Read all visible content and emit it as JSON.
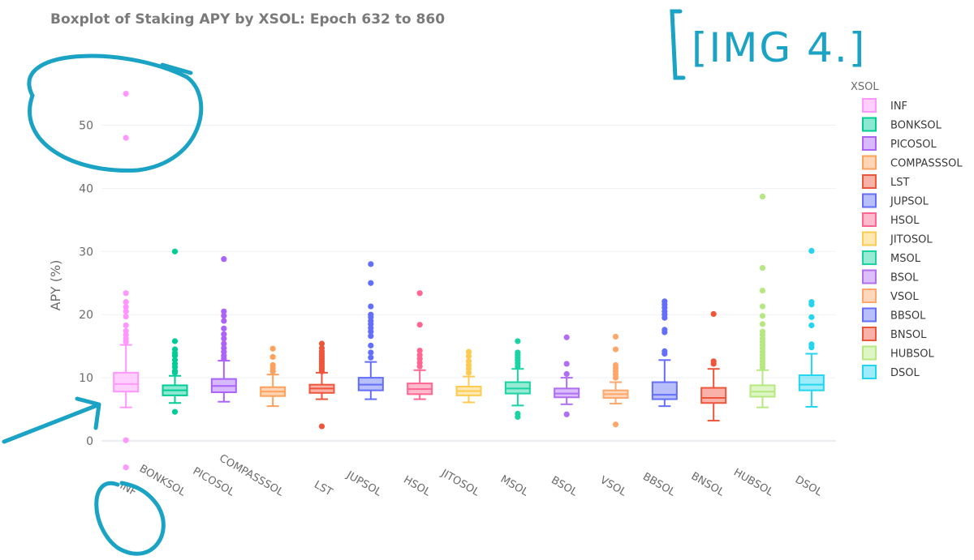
{
  "chart_data": {
    "type": "box",
    "title": "Boxplot of Staking APY by XSOL: Epoch 632 to 860",
    "xlabel": "",
    "ylabel": "APY (%)",
    "ylim": [
      -8,
      58
    ],
    "yticks": [
      0,
      10,
      20,
      30,
      40,
      50
    ],
    "legend_title": "XSOL",
    "legend_position": "right",
    "grid": true,
    "series": [
      {
        "name": "INF",
        "color": "#ff97ff",
        "q1": 7.8,
        "median": 9.0,
        "q3": 10.8,
        "lower_fence": 5.3,
        "upper_fence": 15.2,
        "outliers": [
          55,
          48,
          23.4,
          22.0,
          21.2,
          20.5,
          19.7,
          18.3,
          17.4,
          16.8,
          16.2,
          15.7,
          0.1,
          -4.2
        ]
      },
      {
        "name": "BONKSOL",
        "color": "#00cc96",
        "q1": 7.2,
        "median": 8.0,
        "q3": 8.8,
        "lower_fence": 6.0,
        "upper_fence": 10.3,
        "outliers": [
          30.0,
          15.8,
          14.5,
          13.9,
          13.5,
          12.8,
          12.2,
          11.7,
          11.1,
          10.8,
          4.6
        ]
      },
      {
        "name": "PICOSOL",
        "color": "#ab63fa",
        "q1": 7.7,
        "median": 8.7,
        "q3": 9.8,
        "lower_fence": 6.2,
        "upper_fence": 12.7,
        "outliers": [
          28.8,
          20.5,
          19.8,
          19.0,
          17.8,
          16.9,
          16.2,
          15.4,
          14.7,
          14.1,
          13.5,
          13.0
        ]
      },
      {
        "name": "COMPASSSOL",
        "color": "#ffa15a",
        "q1": 7.1,
        "median": 7.8,
        "q3": 8.5,
        "lower_fence": 5.5,
        "upper_fence": 10.5,
        "outliers": [
          14.6,
          13.3,
          12.0,
          11.5,
          11.0
        ]
      },
      {
        "name": "LST",
        "color": "#ef553b",
        "q1": 7.6,
        "median": 8.3,
        "q3": 8.9,
        "lower_fence": 6.6,
        "upper_fence": 10.8,
        "outliers": [
          15.4,
          14.7,
          14.2,
          13.8,
          13.4,
          13.0,
          12.6,
          12.2,
          11.8,
          11.4,
          11.0,
          2.3
        ]
      },
      {
        "name": "JUPSOL",
        "color": "#636efa",
        "q1": 8.0,
        "median": 8.9,
        "q3": 10.0,
        "lower_fence": 6.6,
        "upper_fence": 12.5,
        "outliers": [
          28.0,
          25.0,
          21.3,
          20.0,
          19.6,
          19.0,
          18.5,
          17.9,
          17.3,
          16.6,
          15.1,
          14.0,
          13.2
        ]
      },
      {
        "name": "HSOL",
        "color": "#ff6692",
        "q1": 7.4,
        "median": 8.2,
        "q3": 9.1,
        "lower_fence": 6.6,
        "upper_fence": 11.2,
        "outliers": [
          23.4,
          18.4,
          14.3,
          13.6,
          13.0,
          12.4,
          11.8
        ]
      },
      {
        "name": "JITOSOL",
        "color": "#fecb52",
        "q1": 7.2,
        "median": 7.9,
        "q3": 8.6,
        "lower_fence": 6.1,
        "upper_fence": 10.2,
        "outliers": [
          14.1,
          13.4,
          12.6,
          12.0,
          11.4,
          10.8
        ]
      },
      {
        "name": "MSOL",
        "color": "#19d3a2",
        "q1": 7.5,
        "median": 8.3,
        "q3": 9.3,
        "lower_fence": 5.6,
        "upper_fence": 11.4,
        "outliers": [
          15.8,
          14.0,
          13.6,
          13.2,
          12.8,
          12.3,
          11.8,
          4.3,
          3.8
        ]
      },
      {
        "name": "BSOL",
        "color": "#b06ff3",
        "q1": 6.9,
        "median": 7.5,
        "q3": 8.3,
        "lower_fence": 5.8,
        "upper_fence": 10.0,
        "outliers": [
          16.4,
          12.2,
          10.6,
          4.2
        ]
      },
      {
        "name": "VSOL",
        "color": "#ffa76b",
        "q1": 6.8,
        "median": 7.4,
        "q3": 8.0,
        "lower_fence": 5.9,
        "upper_fence": 9.3,
        "outliers": [
          16.5,
          14.5,
          12.0,
          11.5,
          11.0,
          10.5,
          10.0,
          2.6
        ]
      },
      {
        "name": "BBSOL",
        "color": "#636efa",
        "q1": 6.6,
        "median": 7.3,
        "q3": 9.3,
        "lower_fence": 5.5,
        "upper_fence": 12.8,
        "outliers": [
          22.1,
          21.6,
          21.1,
          20.5,
          20.0,
          19.5,
          17.6,
          17.2,
          14.2,
          13.8
        ]
      },
      {
        "name": "BNSOL",
        "color": "#ef553b",
        "q1": 6.0,
        "median": 6.8,
        "q3": 8.4,
        "lower_fence": 3.2,
        "upper_fence": 11.4,
        "outliers": [
          20.1,
          12.6,
          12.2
        ]
      },
      {
        "name": "HUBSOL",
        "color": "#b6e880",
        "q1": 7.0,
        "median": 7.8,
        "q3": 8.8,
        "lower_fence": 5.3,
        "upper_fence": 11.2,
        "outliers": [
          38.7,
          27.4,
          23.8,
          21.3,
          19.8,
          18.5,
          17.3,
          16.8,
          16.2,
          15.7,
          15.2,
          14.7,
          14.1,
          13.6,
          13.1,
          12.6,
          12.1,
          11.6
        ]
      },
      {
        "name": "DSOL",
        "color": "#24d5f2",
        "q1": 8.0,
        "median": 8.9,
        "q3": 10.4,
        "lower_fence": 5.4,
        "upper_fence": 13.8,
        "outliers": [
          30.1,
          22.0,
          21.6,
          19.6,
          18.3,
          15.3,
          14.8
        ]
      }
    ]
  },
  "annotation": {
    "text": "[IMG 4.]",
    "color": "#1aa3c4"
  }
}
